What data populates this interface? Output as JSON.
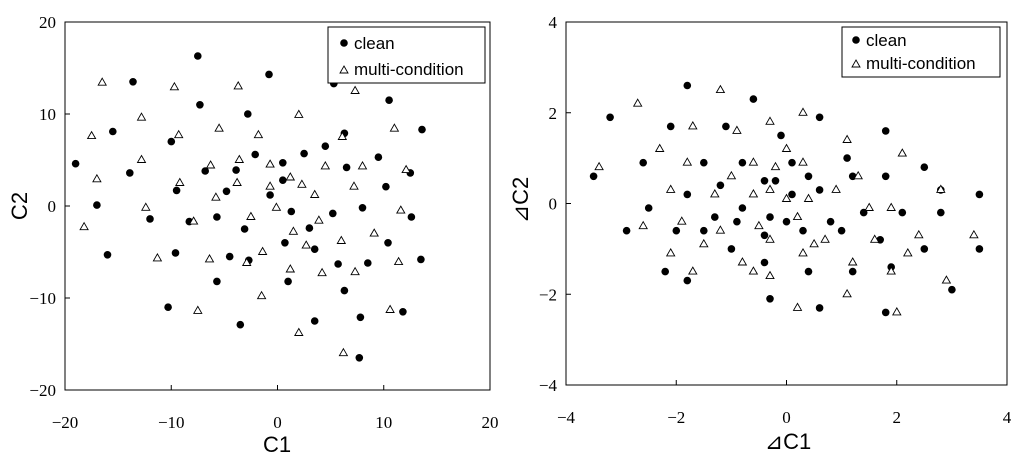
{
  "chart_data": [
    {
      "type": "scatter",
      "xlabel": "C1",
      "ylabel": "C2",
      "xlim": [
        -20,
        20
      ],
      "ylim": [
        -20,
        20
      ],
      "xticks": [
        -20,
        -10,
        0,
        10,
        20
      ],
      "yticks": [
        -20,
        -10,
        0,
        10,
        20
      ],
      "xtick_labels": [
        "−20",
        "−10",
        "0",
        "10",
        "20"
      ],
      "ytick_labels": [
        "−20",
        "−10",
        "0",
        "10",
        "20"
      ],
      "grid": false,
      "legend": "top-right",
      "series": [
        {
          "name": "clean",
          "marker": "filled-circle",
          "points": [
            [
              -7.5,
              16.3
            ],
            [
              -13.6,
              13.5
            ],
            [
              -0.8,
              14.3
            ],
            [
              5.3,
              13.3
            ],
            [
              10.5,
              11.5
            ],
            [
              -7.3,
              11
            ],
            [
              -10,
              7
            ],
            [
              -15.5,
              8.1
            ],
            [
              -2.8,
              10
            ],
            [
              6.3,
              7.9
            ],
            [
              -19,
              4.6
            ],
            [
              -13.9,
              3.6
            ],
            [
              -17,
              0.1
            ],
            [
              -16,
              -5.3
            ],
            [
              -12,
              -1.4
            ],
            [
              -9.5,
              1.7
            ],
            [
              -8.3,
              -1.7
            ],
            [
              -6.8,
              3.8
            ],
            [
              -4.8,
              1.6
            ],
            [
              -3.9,
              3.9
            ],
            [
              -2.1,
              5.6
            ],
            [
              0.5,
              4.7
            ],
            [
              2.5,
              5.7
            ],
            [
              4.5,
              6.5
            ],
            [
              6.5,
              4.2
            ],
            [
              9.5,
              5.3
            ],
            [
              12.5,
              3.6
            ],
            [
              13.6,
              8.3
            ],
            [
              10.2,
              2.1
            ],
            [
              -5.7,
              -1.2
            ],
            [
              -3.1,
              -2.5
            ],
            [
              -0.7,
              1.2
            ],
            [
              0.5,
              2.8
            ],
            [
              1.3,
              -0.6
            ],
            [
              3,
              -2.4
            ],
            [
              5.2,
              -0.8
            ],
            [
              8,
              -0.2
            ],
            [
              -4.5,
              -5.5
            ],
            [
              -2.7,
              -5.9
            ],
            [
              0.7,
              -4
            ],
            [
              3.5,
              -4.7
            ],
            [
              5.7,
              -6.3
            ],
            [
              8.5,
              -6.2
            ],
            [
              10.4,
              -4
            ],
            [
              12.6,
              -1.2
            ],
            [
              13.5,
              -5.8
            ],
            [
              -10.3,
              -11
            ],
            [
              -9.6,
              -5.1
            ],
            [
              -5.7,
              -8.2
            ],
            [
              -3.5,
              -12.9
            ],
            [
              1,
              -8.2
            ],
            [
              3.5,
              -12.5
            ],
            [
              6.3,
              -9.2
            ],
            [
              7.8,
              -12.1
            ],
            [
              11.8,
              -11.5
            ],
            [
              7.7,
              -16.5
            ]
          ]
        },
        {
          "name": "multi-condition",
          "marker": "open-triangle",
          "points": [
            [
              -16.5,
              13.4
            ],
            [
              -9.7,
              12.9
            ],
            [
              -3.7,
              13
            ],
            [
              7.3,
              12.5
            ],
            [
              -12.8,
              9.6
            ],
            [
              -17.5,
              7.6
            ],
            [
              -9.3,
              7.7
            ],
            [
              -5.5,
              8.4
            ],
            [
              -1.8,
              7.7
            ],
            [
              2,
              9.9
            ],
            [
              6.1,
              7.5
            ],
            [
              11,
              8.4
            ],
            [
              -12.8,
              5
            ],
            [
              -17,
              2.9
            ],
            [
              -9.2,
              2.5
            ],
            [
              -6.3,
              4.4
            ],
            [
              -3.6,
              5
            ],
            [
              -0.7,
              4.5
            ],
            [
              2.3,
              2.3
            ],
            [
              4.5,
              4.3
            ],
            [
              8,
              4.3
            ],
            [
              12.1,
              3.9
            ],
            [
              -18.2,
              -2.3
            ],
            [
              -12.4,
              -0.2
            ],
            [
              -7.9,
              -1.7
            ],
            [
              -5.8,
              0.9
            ],
            [
              -3.8,
              2.5
            ],
            [
              -0.7,
              2.1
            ],
            [
              1.2,
              3.1
            ],
            [
              3.5,
              1.2
            ],
            [
              7.2,
              2.1
            ],
            [
              11.6,
              -0.5
            ],
            [
              -11.3,
              -5.7
            ],
            [
              -6.4,
              -5.8
            ],
            [
              -2.5,
              -1.2
            ],
            [
              -0.1,
              -0.2
            ],
            [
              1.5,
              -2.8
            ],
            [
              3.9,
              -1.6
            ],
            [
              6,
              -3.8
            ],
            [
              9.1,
              -3
            ],
            [
              11.4,
              -6.1
            ],
            [
              -7.5,
              -11.4
            ],
            [
              -2.9,
              -6.2
            ],
            [
              -1.5,
              -9.8
            ],
            [
              1.2,
              -6.9
            ],
            [
              2.7,
              -4.3
            ],
            [
              4.2,
              -7.3
            ],
            [
              7.3,
              -7.2
            ],
            [
              10.6,
              -11.3
            ],
            [
              2,
              -13.8
            ],
            [
              6.2,
              -16
            ],
            [
              -1.4,
              -5
            ]
          ]
        }
      ]
    },
    {
      "type": "scatter",
      "xlabel": "⊿C1",
      "ylabel": "⊿C2",
      "xlim": [
        -4,
        4
      ],
      "ylim": [
        -4,
        4
      ],
      "xticks": [
        -4,
        -2,
        0,
        2,
        4
      ],
      "yticks": [
        -4,
        -2,
        0,
        2,
        4
      ],
      "xtick_labels": [
        "−4",
        "−2",
        "0",
        "2",
        "4"
      ],
      "ytick_labels": [
        "−4",
        "−2",
        "0",
        "2",
        "4"
      ],
      "grid": false,
      "legend": "top-right",
      "series": [
        {
          "name": "clean",
          "marker": "filled-circle",
          "points": [
            [
              -1.8,
              2.6
            ],
            [
              -0.6,
              2.3
            ],
            [
              -3.2,
              1.9
            ],
            [
              -1.1,
              1.7
            ],
            [
              -0.1,
              1.5
            ],
            [
              0.6,
              1.9
            ],
            [
              -2.1,
              1.7
            ],
            [
              1.8,
              1.6
            ],
            [
              -2.6,
              0.9
            ],
            [
              -1.5,
              0.9
            ],
            [
              -0.8,
              0.9
            ],
            [
              -0.2,
              0.5
            ],
            [
              0.4,
              0.6
            ],
            [
              1.1,
              1
            ],
            [
              -3.5,
              0.6
            ],
            [
              -1.8,
              0.2
            ],
            [
              -1.2,
              0.4
            ],
            [
              -0.4,
              0.5
            ],
            [
              0.1,
              0.2
            ],
            [
              0.6,
              0.3
            ],
            [
              1.2,
              0.6
            ],
            [
              1.8,
              0.6
            ],
            [
              2.5,
              0.8
            ],
            [
              -2.5,
              -0.1
            ],
            [
              -1.3,
              -0.3
            ],
            [
              -0.8,
              -0.1
            ],
            [
              -0.3,
              -0.3
            ],
            [
              0,
              -0.4
            ],
            [
              0.8,
              -0.4
            ],
            [
              1.4,
              -0.2
            ],
            [
              2.1,
              -0.2
            ],
            [
              2.8,
              -0.2
            ],
            [
              3.5,
              0.2
            ],
            [
              -2.9,
              -0.6
            ],
            [
              -2,
              -0.6
            ],
            [
              -1.5,
              -0.6
            ],
            [
              -0.9,
              -0.4
            ],
            [
              -0.4,
              -0.7
            ],
            [
              0.3,
              -0.6
            ],
            [
              1,
              -0.6
            ],
            [
              1.7,
              -0.8
            ],
            [
              -2.2,
              -1.5
            ],
            [
              -1.0,
              -1
            ],
            [
              -0.4,
              -1.3
            ],
            [
              0.4,
              -1.5
            ],
            [
              1.2,
              -1.5
            ],
            [
              1.9,
              -1.4
            ],
            [
              3.5,
              -1
            ],
            [
              -1.8,
              -1.7
            ],
            [
              -0.3,
              -2.1
            ],
            [
              0.6,
              -2.3
            ],
            [
              1.8,
              -2.4
            ],
            [
              3,
              -1.9
            ],
            [
              0.1,
              0.9
            ],
            [
              2.5,
              -1.0
            ],
            [
              2.8,
              0.3
            ]
          ]
        },
        {
          "name": "multi-condition",
          "marker": "open-triangle",
          "points": [
            [
              -2.7,
              2.2
            ],
            [
              -1.2,
              2.5
            ],
            [
              -0.3,
              1.8
            ],
            [
              0.3,
              2
            ],
            [
              -2.3,
              1.2
            ],
            [
              -1.7,
              1.7
            ],
            [
              -0.9,
              1.6
            ],
            [
              0,
              1.2
            ],
            [
              1.1,
              1.4
            ],
            [
              -3.4,
              0.8
            ],
            [
              -1.8,
              0.9
            ],
            [
              -1.0,
              0.6
            ],
            [
              -0.6,
              0.9
            ],
            [
              0.3,
              0.9
            ],
            [
              1.3,
              0.6
            ],
            [
              2.1,
              1.1
            ],
            [
              -2.1,
              0.3
            ],
            [
              -1.3,
              0.2
            ],
            [
              -0.6,
              0.2
            ],
            [
              -0.3,
              0.3
            ],
            [
              0.4,
              0.1
            ],
            [
              0.9,
              0.3
            ],
            [
              1.5,
              -0.1
            ],
            [
              2.8,
              0.3
            ],
            [
              -2.6,
              -0.5
            ],
            [
              -1.9,
              -0.4
            ],
            [
              -1.2,
              -0.6
            ],
            [
              -0.5,
              -0.5
            ],
            [
              0,
              0.1
            ],
            [
              0.2,
              -0.3
            ],
            [
              0.7,
              -0.8
            ],
            [
              1.6,
              -0.8
            ],
            [
              2.4,
              -0.7
            ],
            [
              -2.1,
              -1.1
            ],
            [
              -1.5,
              -0.9
            ],
            [
              -0.8,
              -1.3
            ],
            [
              -0.3,
              -0.8
            ],
            [
              0.5,
              -0.9
            ],
            [
              1.2,
              -1.3
            ],
            [
              2.2,
              -1.1
            ],
            [
              3.4,
              -0.7
            ],
            [
              -1.7,
              -1.5
            ],
            [
              -0.6,
              -1.5
            ],
            [
              0.3,
              -1.1
            ],
            [
              1.1,
              -2
            ],
            [
              1.9,
              -1.5
            ],
            [
              2.9,
              -1.7
            ],
            [
              -0.3,
              -1.6
            ],
            [
              0.2,
              -2.3
            ],
            [
              2,
              -2.4
            ],
            [
              -0.2,
              0.8
            ],
            [
              1.9,
              -0.1
            ]
          ]
        }
      ]
    }
  ]
}
